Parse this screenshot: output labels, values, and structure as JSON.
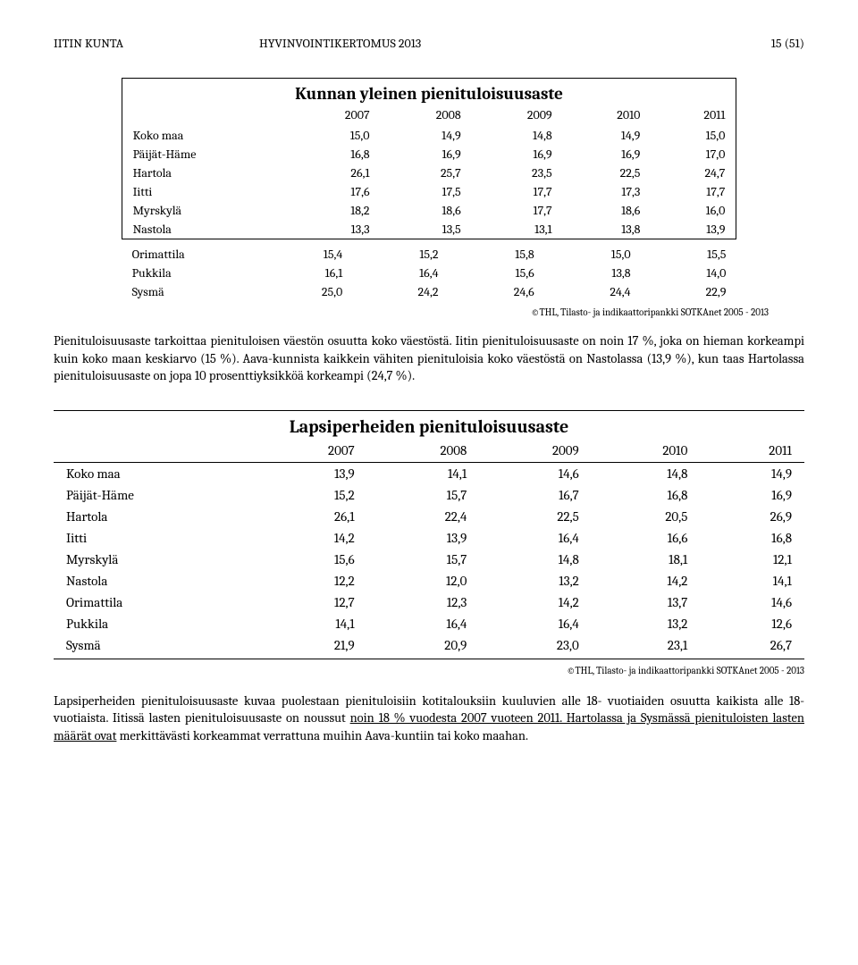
{
  "header": {
    "left": "IITIN KUNTA",
    "center": "HYVINVOINTIKERTOMUS 2013",
    "right": "15 (51)"
  },
  "table1": {
    "title": "Kunnan yleinen pienituloisuusaste",
    "years": [
      "2007",
      "2008",
      "2009",
      "2010",
      "2011"
    ],
    "inside_rows": [
      {
        "label": "Koko maa",
        "vals": [
          "15,0",
          "14,9",
          "14,8",
          "14,9",
          "15,0"
        ]
      },
      {
        "label": "Päijät-Häme",
        "vals": [
          "16,8",
          "16,9",
          "16,9",
          "16,9",
          "17,0"
        ]
      },
      {
        "label": "Hartola",
        "vals": [
          "26,1",
          "25,7",
          "23,5",
          "22,5",
          "24,7"
        ]
      },
      {
        "label": "Iitti",
        "vals": [
          "17,6",
          "17,5",
          "17,7",
          "17,3",
          "17,7"
        ]
      },
      {
        "label": "Myrskylä",
        "vals": [
          "18,2",
          "18,6",
          "17,7",
          "18,6",
          "16,0"
        ]
      },
      {
        "label": "Nastola",
        "vals": [
          "13,3",
          "13,5",
          "13,1",
          "13,8",
          "13,9"
        ]
      }
    ],
    "outside_rows": [
      {
        "label": "Orimattila",
        "vals": [
          "15,4",
          "15,2",
          "15,8",
          "15,0",
          "15,5"
        ]
      },
      {
        "label": "Pukkila",
        "vals": [
          "16,1",
          "16,4",
          "15,6",
          "13,8",
          "14,0"
        ]
      },
      {
        "label": "Sysmä",
        "vals": [
          "25,0",
          "24,2",
          "24,6",
          "24,4",
          "22,9"
        ]
      }
    ],
    "source": "©THL, Tilasto- ja indikaattoripankki SOTKAnet 2005 - 2013"
  },
  "para1": "Pienituloisuusaste tarkoittaa pienituloisen väestön osuutta koko väestöstä. Iitin pienituloisuusaste on noin 17 %, joka on hieman korkeampi kuin koko maan keskiarvo (15 %). Aava-kunnista kaikkein vähiten pienituloisia koko väestöstä on Nastolassa (13,9 %), kun taas Hartolassa pienituloisuusaste on jopa 10 prosenttiyksikköä korkeampi (24,7 %).",
  "table2": {
    "title": "Lapsiperheiden pienituloisuusaste",
    "years": [
      "2007",
      "2008",
      "2009",
      "2010",
      "2011"
    ],
    "rows": [
      {
        "label": "Koko maa",
        "vals": [
          "13,9",
          "14,1",
          "14,6",
          "14,8",
          "14,9"
        ]
      },
      {
        "label": "Päijät-Häme",
        "vals": [
          "15,2",
          "15,7",
          "16,7",
          "16,8",
          "16,9"
        ]
      },
      {
        "label": "Hartola",
        "vals": [
          "26,1",
          "22,4",
          "22,5",
          "20,5",
          "26,9"
        ]
      },
      {
        "label": "Iitti",
        "vals": [
          "14,2",
          "13,9",
          "16,4",
          "16,6",
          "16,8"
        ]
      },
      {
        "label": "Myrskylä",
        "vals": [
          "15,6",
          "15,7",
          "14,8",
          "18,1",
          "12,1"
        ]
      },
      {
        "label": "Nastola",
        "vals": [
          "12,2",
          "12,0",
          "13,2",
          "14,2",
          "14,1"
        ]
      },
      {
        "label": "Orimattila",
        "vals": [
          "12,7",
          "12,3",
          "14,2",
          "13,7",
          "14,6"
        ]
      },
      {
        "label": "Pukkila",
        "vals": [
          "14,1",
          "16,4",
          "16,4",
          "13,2",
          "12,6"
        ]
      },
      {
        "label": "Sysmä",
        "vals": [
          "21,9",
          "20,9",
          "23,0",
          "23,1",
          "26,7"
        ]
      }
    ],
    "source": "©THL, Tilasto- ja indikaattoripankki SOTKAnet 2005 - 2013"
  },
  "para2_pre": "Lapsiperheiden pienituloisuusaste kuvaa puolestaan pienituloisiin kotitalouksiin kuuluvien alle 18- vuotiaiden osuutta kaikista alle 18-vuotiaista. Iitissä lasten pienituloisuusaste on noussut ",
  "para2_underlined": "noin 18 % vuodesta 2007 vuoteen 2011. Hartolassa ja Sysmässä pienituloisten lasten määrät ovat",
  "para2_post": " merkittävästi korkeammat verrattuna muihin Aava-kuntiin tai koko maahan."
}
